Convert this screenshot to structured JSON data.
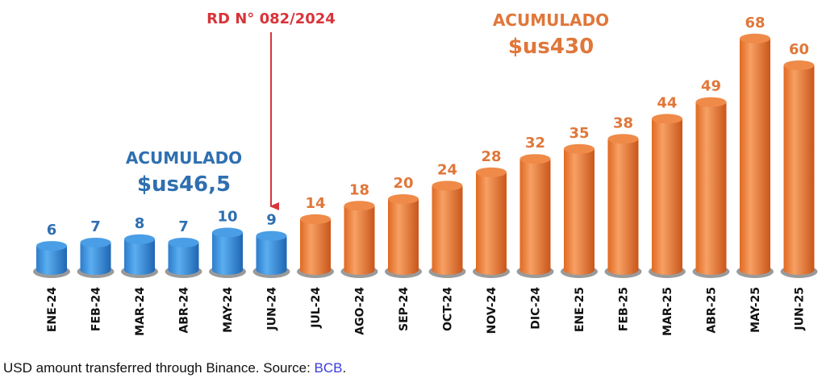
{
  "chart_data": {
    "type": "bar",
    "title": "",
    "xlabel": "",
    "ylabel": "",
    "categories": [
      "ENE-24",
      "FEB-24",
      "MAR-24",
      "ABR-24",
      "MAY-24",
      "JUN-24",
      "JUL-24",
      "AGO-24",
      "SEP-24",
      "OCT-24",
      "NOV-24",
      "DIC-24",
      "ENE-25",
      "FEB-25",
      "MAR-25",
      "ABR-25",
      "MAY-25",
      "JUN-25"
    ],
    "values": [
      6,
      7,
      8,
      7,
      10,
      9,
      14,
      18,
      20,
      24,
      28,
      32,
      35,
      38,
      44,
      49,
      68,
      60
    ],
    "ylim": [
      0,
      70
    ],
    "grid": false,
    "colors": {
      "before": "#3a8ed8",
      "after": "#e8752e",
      "before_label": "#2f6fb0",
      "after_label": "#e0773a",
      "annotation": "#d8343a"
    },
    "color_switch_index": 6,
    "annotations": {
      "regulation": "RD N° 082/2024",
      "before_total_label": "ACUMULADO",
      "before_total_value": "$us46,5",
      "after_total_label": "ACUMULADO",
      "after_total_value": "$us430"
    }
  },
  "caption": {
    "text": "USD amount transferred through Binance. Source: ",
    "link": "BCB",
    "end": "."
  }
}
